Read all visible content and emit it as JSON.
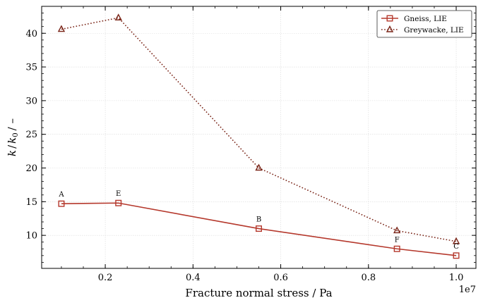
{
  "chart_data": {
    "type": "line",
    "xlabel": "Fracture normal stress / Pa",
    "ylabel_parts": [
      "k",
      "/",
      "k",
      "0",
      "/ –"
    ],
    "x_offset_label": "1e7",
    "x_scale": 10000000,
    "xlim": [
      550000,
      10450000
    ],
    "ylim": [
      5.1,
      44
    ],
    "xticks": [
      2000000,
      4000000,
      6000000,
      8000000,
      10000000
    ],
    "xtick_labels": [
      "0.2",
      "0.4",
      "0.6",
      "0.8",
      "1.0"
    ],
    "yticks": [
      10,
      15,
      20,
      25,
      30,
      35,
      40
    ],
    "ytick_labels": [
      "10",
      "15",
      "20",
      "25",
      "30",
      "35",
      "40"
    ],
    "x_minor_step": 500000,
    "y_minor_step": 1,
    "grid": true,
    "legend_position": "top-right",
    "series": [
      {
        "name": "Gneiss, LIE",
        "marker": "square",
        "linestyle": "solid",
        "color": "#b5382c",
        "x": [
          1000000,
          2300000,
          5500000,
          8650000,
          10000000
        ],
        "y": [
          14.7,
          14.8,
          11.0,
          8.0,
          7.0
        ]
      },
      {
        "name": "Greywacke, LIE",
        "marker": "triangle",
        "linestyle": "dotted",
        "color": "#7a2518",
        "x": [
          1000000,
          2300000,
          5500000,
          8650000,
          10000000
        ],
        "y": [
          40.6,
          42.3,
          20.0,
          10.7,
          9.1
        ]
      }
    ],
    "point_labels": [
      {
        "text": "A",
        "x": 1000000,
        "y": 14.7
      },
      {
        "text": "E",
        "x": 2300000,
        "y": 14.8
      },
      {
        "text": "B",
        "x": 5500000,
        "y": 11.0
      },
      {
        "text": "F",
        "x": 8650000,
        "y": 8.0
      },
      {
        "text": "C",
        "x": 10000000,
        "y": 7.0
      }
    ]
  }
}
